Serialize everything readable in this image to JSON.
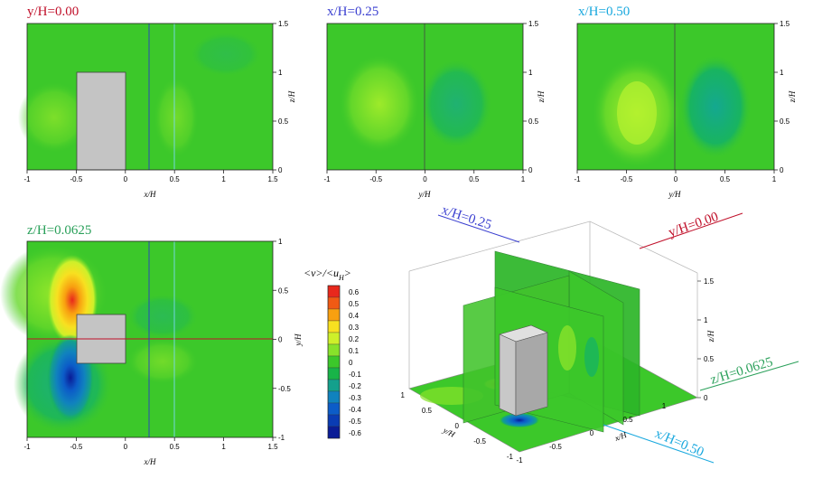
{
  "chart_data": [
    {
      "type": "heatmap",
      "title": "y/H=0.00",
      "title_color": "#c0102a",
      "xlabel": "x/H",
      "ylabel": "z/H",
      "xlim": [
        -1,
        1.5
      ],
      "ylim": [
        0,
        1.5
      ],
      "xticks": [
        "-1",
        "-0.5",
        "0",
        "0.5",
        "1",
        "1.5"
      ],
      "yticks": [
        "0",
        "0.5",
        "1",
        "1.5"
      ],
      "ytick_values": [
        0,
        0.5,
        1,
        1.5
      ]
    },
    {
      "type": "heatmap",
      "title": "x/H=0.25",
      "title_color": "#3a3fd0",
      "xlabel": "y/H",
      "ylabel": "z/H",
      "xlim": [
        -1,
        1
      ],
      "ylim": [
        0,
        1.5
      ],
      "xticks": [
        "-1",
        "-0.5",
        "0",
        "0.5",
        "1"
      ],
      "yticks": [
        "0",
        "0.5",
        "1",
        "1.5"
      ],
      "ytick_values": [
        0,
        0.5,
        1,
        1.5
      ]
    },
    {
      "type": "heatmap",
      "title": "x/H=0.50",
      "title_color": "#18a8de",
      "xlabel": "y/H",
      "ylabel": "z/H",
      "xlim": [
        -1,
        1
      ],
      "ylim": [
        0,
        1.5
      ],
      "xticks": [
        "-1",
        "-0.5",
        "0",
        "0.5",
        "1"
      ],
      "yticks": [
        "0",
        "0.5",
        "1",
        "1.5"
      ],
      "ytick_values": [
        0,
        0.5,
        1,
        1.5
      ]
    },
    {
      "type": "heatmap",
      "title": "z/H=0.0625",
      "title_color": "#2aa05a",
      "xlabel": "x/H",
      "ylabel": "y/H",
      "xlim": [
        -1,
        1.5
      ],
      "ylim": [
        -1,
        1
      ],
      "xticks": [
        "-1",
        "-0.5",
        "0",
        "0.5",
        "1",
        "1.5"
      ],
      "yticks": [
        "-1",
        "-0.5",
        "0",
        "0.5",
        "1"
      ],
      "ytick_values": [
        -1,
        -0.5,
        0,
        0.5,
        1
      ]
    }
  ],
  "colorbar": {
    "title_main": "<v>/<u",
    "title_sub": "H",
    "title_end": ">",
    "levels": [
      "0.6",
      "0.5",
      "0.4",
      "0.3",
      "0.2",
      "0.1",
      "0",
      "-0.1",
      "-0.2",
      "-0.3",
      "-0.4",
      "-0.5",
      "-0.6"
    ],
    "colors": [
      "#e8281c",
      "#f05a14",
      "#f8a010",
      "#f8e020",
      "#cef02a",
      "#88e22a",
      "#3cc82a",
      "#18b448",
      "#14a08c",
      "#1082be",
      "#0c5cc8",
      "#0a3cb4",
      "#0a1c96"
    ]
  },
  "view3d": {
    "labels": {
      "x025": "x/H=0.25",
      "y000": "y/H=0.00",
      "z0625": "z/H=0.0625",
      "x050": "x/H=0.50"
    },
    "axes": {
      "z_label": "z/H",
      "z_ticks": [
        "0",
        "0.5",
        "1",
        "1.5"
      ],
      "x_label": "x/H",
      "x_ticks": [
        "-1",
        "-0.5",
        "0",
        "0.5",
        "1"
      ],
      "y_label": "y/H",
      "y_ticks": [
        "-1",
        "-0.5",
        "0",
        "0.5",
        "1"
      ]
    }
  },
  "colors": {
    "field": "#3cc82a",
    "block": "#c4c4c4"
  }
}
